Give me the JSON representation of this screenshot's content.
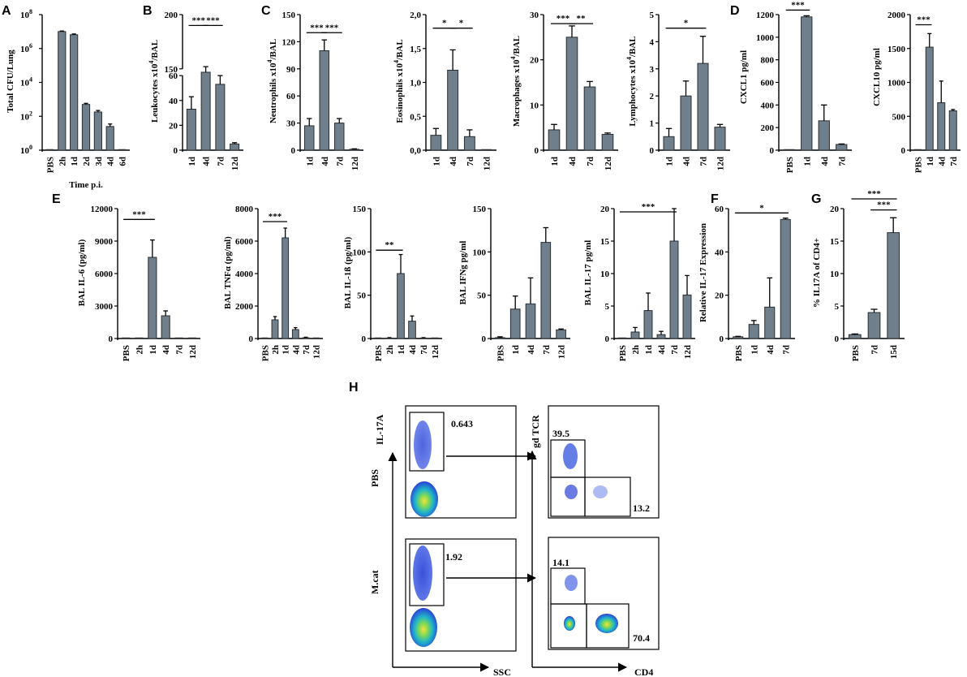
{
  "panels": {
    "A": "A",
    "B": "B",
    "C": "C",
    "D": "D",
    "E": "E",
    "F": "F",
    "G": "G",
    "H": "H"
  },
  "chart_data": [
    {
      "id": "A",
      "type": "bar",
      "scale": "log",
      "ylabel": "Total CFU/Lung",
      "xlabel": "Time p.i.",
      "categories": [
        "PBS",
        "2h",
        "1d",
        "2d",
        "3d",
        "4d",
        "6d"
      ],
      "values": [
        0,
        10000000,
        6500000,
        500,
        180,
        25,
        0
      ],
      "errors": [
        0,
        800000,
        700000,
        80,
        40,
        10,
        0
      ],
      "yticks": [
        {
          "v": 1,
          "l": "10",
          "e": "0"
        },
        {
          "v": 100,
          "l": "10",
          "e": "2"
        },
        {
          "v": 10000,
          "l": "10",
          "e": "4"
        },
        {
          "v": 1000000,
          "l": "10",
          "e": "6"
        },
        {
          "v": 100000000,
          "l": "10",
          "e": "8"
        }
      ],
      "ylim": [
        1,
        100000000
      ],
      "sig": []
    },
    {
      "id": "B",
      "type": "bar",
      "ylabel": "Leukocytes x10",
      "ysup": "4",
      "ysuffix": "/BAL",
      "categories": [
        "1d",
        "4d",
        "7d",
        "12d"
      ],
      "values": [
        33,
        138,
        53,
        5
      ],
      "errors": [
        10,
        14,
        7,
        1
      ],
      "yticks": [
        {
          "v": 0,
          "l": "0"
        },
        {
          "v": 20,
          "l": "20"
        },
        {
          "v": 40,
          "l": "40"
        },
        {
          "v": 60,
          "l": "60"
        },
        {
          "v": 150,
          "l": "150"
        },
        {
          "v": 200,
          "l": "200"
        }
      ],
      "broken": true,
      "sig": [
        {
          "from": 0,
          "to": 1,
          "y": 190,
          "label": "***"
        },
        {
          "from": 1,
          "to": 2,
          "y": 190,
          "label": "***"
        }
      ]
    },
    {
      "id": "C1",
      "type": "bar",
      "ylabel": "Neutrophils x10",
      "ysup": "4",
      "ysuffix": "/BAL",
      "categories": [
        "1d",
        "4d",
        "7d",
        "12d"
      ],
      "values": [
        27,
        110,
        30,
        1
      ],
      "errors": [
        8,
        12,
        5,
        0.5
      ],
      "yticks": [
        {
          "v": 0,
          "l": "0"
        },
        {
          "v": 30,
          "l": "30"
        },
        {
          "v": 60,
          "l": "60"
        },
        {
          "v": 90,
          "l": "90"
        },
        {
          "v": 120,
          "l": "120"
        },
        {
          "v": 150,
          "l": "150"
        }
      ],
      "ylim": [
        0,
        150
      ],
      "sig": [
        {
          "from": 0,
          "to": 1,
          "y": 130,
          "label": "***"
        },
        {
          "from": 1,
          "to": 2,
          "y": 130,
          "label": "***"
        }
      ]
    },
    {
      "id": "C2",
      "type": "bar",
      "ylabel": "Eosinophils x10",
      "ysup": "4",
      "ysuffix": "/BAL",
      "categories": [
        "1d",
        "4d",
        "7d",
        "12d"
      ],
      "values": [
        0.22,
        1.18,
        0.2,
        0
      ],
      "errors": [
        0.1,
        0.3,
        0.1,
        0
      ],
      "yticks": [
        {
          "v": 0,
          "l": "0,0"
        },
        {
          "v": 0.5,
          "l": "0,5"
        },
        {
          "v": 1,
          "l": "1,0"
        },
        {
          "v": 1.5,
          "l": "1,5"
        },
        {
          "v": 2,
          "l": "2,0"
        }
      ],
      "ylim": [
        0,
        2
      ],
      "sig": [
        {
          "from": 0,
          "to": 1,
          "y": 1.8,
          "label": "*"
        },
        {
          "from": 1,
          "to": 2,
          "y": 1.8,
          "label": "*"
        }
      ]
    },
    {
      "id": "C3",
      "type": "bar",
      "ylabel": "Macrophages x10",
      "ysup": "4",
      "ysuffix": "/BAL",
      "categories": [
        "1d",
        "4d",
        "7d",
        "12d"
      ],
      "values": [
        4.5,
        25,
        14,
        3.5
      ],
      "errors": [
        1.2,
        2.5,
        1.2,
        0.3
      ],
      "yticks": [
        {
          "v": 0,
          "l": "0"
        },
        {
          "v": 10,
          "l": "10"
        },
        {
          "v": 20,
          "l": "20"
        },
        {
          "v": 30,
          "l": "30"
        }
      ],
      "ylim": [
        0,
        30
      ],
      "sig": [
        {
          "from": 0,
          "to": 1,
          "y": 28,
          "label": "***"
        },
        {
          "from": 1,
          "to": 2,
          "y": 28,
          "label": "**"
        }
      ]
    },
    {
      "id": "C4",
      "type": "bar",
      "ylabel": "Lymphocytes x10",
      "ysup": "4",
      "ysuffix": "/BAL",
      "categories": [
        "1d",
        "4d",
        "7d",
        "12d"
      ],
      "values": [
        0.5,
        2,
        3.2,
        0.85
      ],
      "errors": [
        0.3,
        0.55,
        1,
        0.1
      ],
      "yticks": [
        {
          "v": 0,
          "l": "0"
        },
        {
          "v": 1,
          "l": "1"
        },
        {
          "v": 2,
          "l": "2"
        },
        {
          "v": 3,
          "l": "3"
        },
        {
          "v": 4,
          "l": "4"
        },
        {
          "v": 5,
          "l": "5"
        }
      ],
      "ylim": [
        0,
        5
      ],
      "sig": [
        {
          "from": 0,
          "to": 2,
          "y": 4.5,
          "label": "*"
        }
      ]
    },
    {
      "id": "D1",
      "type": "bar",
      "ylabel": "CXCL1  pg/ml",
      "categories": [
        "PBS",
        "1d",
        "4d",
        "7d"
      ],
      "values": [
        0,
        1180,
        260,
        50
      ],
      "errors": [
        0,
        10,
        140,
        5
      ],
      "yticks": [
        {
          "v": 0,
          "l": "0"
        },
        {
          "v": 200,
          "l": "200"
        },
        {
          "v": 400,
          "l": "400"
        },
        {
          "v": 600,
          "l": "600"
        },
        {
          "v": 800,
          "l": "800"
        },
        {
          "v": 1000,
          "l": "1000"
        },
        {
          "v": 1200,
          "l": "1200"
        }
      ],
      "ylim": [
        0,
        1200
      ],
      "sig": [
        {
          "from": 0,
          "to": 1,
          "y": 1240,
          "label": "***"
        }
      ]
    },
    {
      "id": "D2",
      "type": "bar",
      "ylabel": "CXCL10  pg/ml",
      "categories": [
        "PBS",
        "1d",
        "4d",
        "7d"
      ],
      "values": [
        0,
        1520,
        700,
        580
      ],
      "errors": [
        0,
        200,
        320,
        20
      ],
      "yticks": [
        {
          "v": 0,
          "l": "0"
        },
        {
          "v": 500,
          "l": "500"
        },
        {
          "v": 1000,
          "l": "1000"
        },
        {
          "v": 1500,
          "l": "1500"
        },
        {
          "v": 2000,
          "l": "2000"
        }
      ],
      "ylim": [
        0,
        2000
      ],
      "sig": [
        {
          "from": 0,
          "to": 1,
          "y": 1850,
          "label": "***"
        }
      ]
    },
    {
      "id": "E1",
      "type": "bar",
      "ylabel": "BAL IL-6 (pg/ml)",
      "categories": [
        "PBS",
        "2h",
        "1d",
        "4d",
        "7d",
        "12d"
      ],
      "values": [
        0,
        0,
        7500,
        2100,
        0,
        0
      ],
      "errors": [
        0,
        0,
        1600,
        450,
        0,
        0
      ],
      "yticks": [
        {
          "v": 0,
          "l": "0"
        },
        {
          "v": 3000,
          "l": "3000"
        },
        {
          "v": 6000,
          "l": "6000"
        },
        {
          "v": 9000,
          "l": "9000"
        },
        {
          "v": 12000,
          "l": "12000"
        }
      ],
      "ylim": [
        0,
        12000
      ],
      "sig": [
        {
          "from": 0,
          "to": 2,
          "y": 11000,
          "label": "***"
        }
      ]
    },
    {
      "id": "E2",
      "type": "bar",
      "ylabel": "BAL TNFα (pg/ml)",
      "categories": [
        "PBS",
        "2h",
        "1d",
        "4d",
        "7d",
        "12d"
      ],
      "values": [
        0,
        1150,
        6200,
        550,
        50,
        0
      ],
      "errors": [
        0,
        200,
        600,
        120,
        30,
        0
      ],
      "yticks": [
        {
          "v": 0,
          "l": "0"
        },
        {
          "v": 2000,
          "l": "2000"
        },
        {
          "v": 4000,
          "l": "4000"
        },
        {
          "v": 6000,
          "l": "6000"
        },
        {
          "v": 8000,
          "l": "8000"
        }
      ],
      "ylim": [
        0,
        8000
      ],
      "sig": [
        {
          "from": 0,
          "to": 2,
          "y": 7200,
          "label": "***"
        }
      ]
    },
    {
      "id": "E3",
      "type": "bar",
      "ylabel": "BAL IL-1ß (pg/ml)",
      "categories": [
        "PBS",
        "2h",
        "1d",
        "4d",
        "7d",
        "12d"
      ],
      "values": [
        0,
        0.5,
        75,
        20,
        0.5,
        0
      ],
      "errors": [
        0,
        0.5,
        22,
        6,
        0.5,
        0
      ],
      "yticks": [
        {
          "v": 0,
          "l": "0"
        },
        {
          "v": 50,
          "l": "50"
        },
        {
          "v": 100,
          "l": "100"
        },
        {
          "v": 150,
          "l": "150"
        }
      ],
      "ylim": [
        0,
        150
      ],
      "sig": [
        {
          "from": 0,
          "to": 2,
          "y": 102,
          "label": "**"
        }
      ]
    },
    {
      "id": "E4",
      "type": "bar",
      "ylabel": "BAL IFNg  pg/ml",
      "categories": [
        "PBS",
        "1d",
        "4d",
        "7d",
        "12d"
      ],
      "values": [
        1,
        34,
        40,
        111,
        10
      ],
      "errors": [
        1,
        15,
        30,
        17,
        1
      ],
      "yticks": [
        {
          "v": 0,
          "l": "0"
        },
        {
          "v": 50,
          "l": "50"
        },
        {
          "v": 100,
          "l": "100"
        },
        {
          "v": 150,
          "l": "150"
        }
      ],
      "ylim": [
        0,
        150
      ],
      "sig": []
    },
    {
      "id": "E5",
      "type": "bar",
      "ylabel": "BAL IL-17  pg/ml",
      "categories": [
        "PBS",
        "2h",
        "1d",
        "4d",
        "7d",
        "12d"
      ],
      "values": [
        0,
        1,
        4.3,
        0.6,
        15,
        6.7
      ],
      "errors": [
        0,
        0.7,
        2.7,
        0.5,
        5,
        3
      ],
      "yticks": [
        {
          "v": 0,
          "l": "0"
        },
        {
          "v": 5,
          "l": "5"
        },
        {
          "v": 10,
          "l": "10"
        },
        {
          "v": 15,
          "l": "15"
        },
        {
          "v": 20,
          "l": "20"
        }
      ],
      "ylim": [
        0,
        20
      ],
      "sig": [
        {
          "from": 0,
          "to": 4,
          "y": 19.5,
          "label": "***"
        }
      ]
    },
    {
      "id": "F",
      "type": "bar",
      "ylabel": "Relative IL-17 Expression",
      "categories": [
        "PBS",
        "1d",
        "4d",
        "7d"
      ],
      "values": [
        0.8,
        6.5,
        14.5,
        55
      ],
      "errors": [
        0.2,
        1.8,
        13.5,
        0.6
      ],
      "yticks": [
        {
          "v": 0,
          "l": "0"
        },
        {
          "v": 20,
          "l": "20"
        },
        {
          "v": 40,
          "l": "40"
        },
        {
          "v": 60,
          "l": "60"
        }
      ],
      "ylim": [
        0,
        60
      ],
      "sig": [
        {
          "from": 0,
          "to": 3,
          "y": 58,
          "label": "*"
        }
      ]
    },
    {
      "id": "G",
      "type": "bar",
      "ylabel": "% IL17A of CD4+",
      "categories": [
        "PBS",
        "7d",
        "15d"
      ],
      "values": [
        0.6,
        4,
        16.3
      ],
      "errors": [
        0.1,
        0.5,
        2.3
      ],
      "yticks": [
        {
          "v": 0,
          "l": "0"
        },
        {
          "v": 5,
          "l": "5"
        },
        {
          "v": 10,
          "l": "10"
        },
        {
          "v": 15,
          "l": "15"
        },
        {
          "v": 20,
          "l": "20"
        }
      ],
      "ylim": [
        0,
        20
      ],
      "sig": [
        {
          "from": 0,
          "to": 2,
          "y": 21.5,
          "label": "***"
        },
        {
          "from": 1,
          "to": 2,
          "y": 19.8,
          "label": "***"
        }
      ]
    }
  ],
  "flow": {
    "row_labels": [
      "PBS",
      "M.cat"
    ],
    "left_y_axis": "IL-17A",
    "left_x_axis": "SSC",
    "right_y_axis": "gd TCR",
    "right_x_axis": "CD4",
    "pbs": {
      "il17_gate": "0.643",
      "gd_gate": "39.5",
      "cd4_gate": "13.2"
    },
    "mcat": {
      "il17_gate": "1.92",
      "gd_gate": "14.1",
      "cd4_gate": "70.4"
    }
  }
}
